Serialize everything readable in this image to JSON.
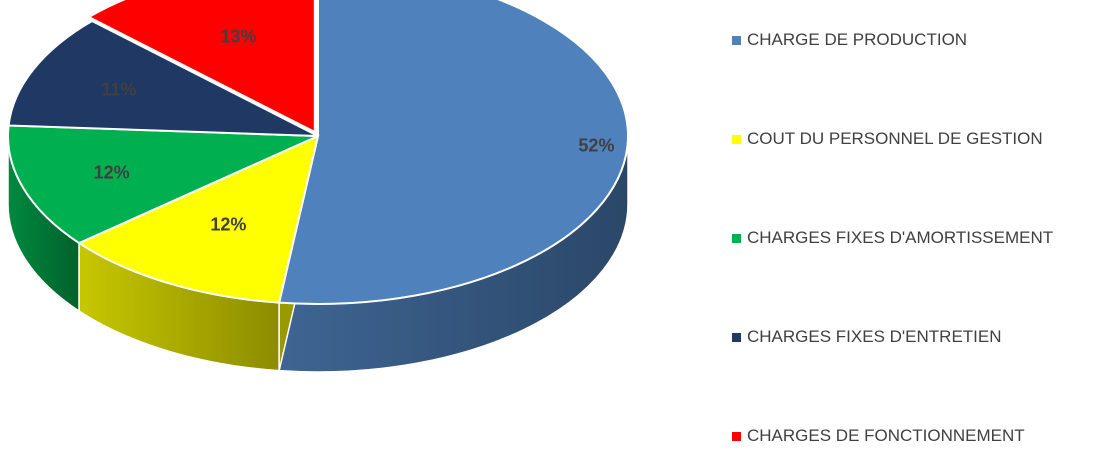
{
  "chart_data": {
    "type": "pie",
    "is_3d": true,
    "categories": [
      "CHARGE DE PRODUCTION",
      "COUT DU PERSONNEL DE GESTION",
      "CHARGES FIXES D'AMORTISSEMENT",
      "CHARGES FIXES D'ENTRETIEN",
      "CHARGES DE FONCTIONNEMENT"
    ],
    "values": [
      52,
      12,
      12,
      11,
      13
    ],
    "labels": [
      "52%",
      "12%",
      "12%",
      "11%",
      "13%"
    ],
    "colors": [
      "#4F81BD",
      "#FFFF00",
      "#00B050",
      "#1F3864",
      "#FF0000"
    ],
    "exploded": [
      "CHARGES DE FONCTIONNEMENT"
    ],
    "title": "",
    "legend_position": "right"
  }
}
